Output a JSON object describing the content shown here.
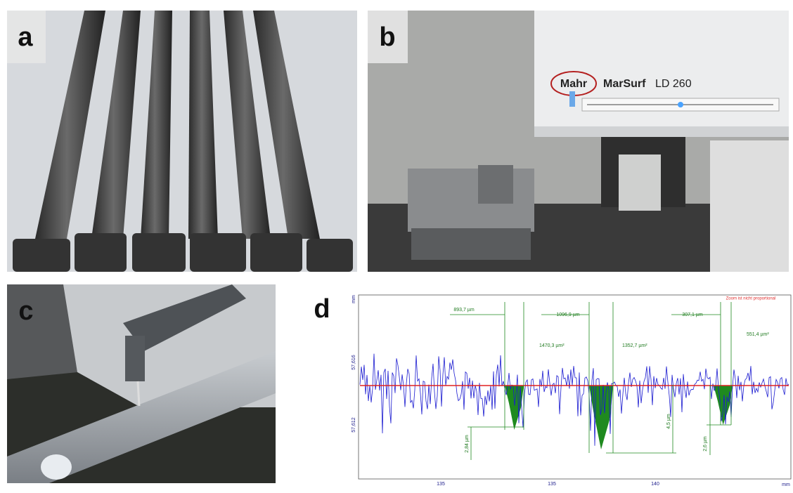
{
  "panels": {
    "a": {
      "label": "a"
    },
    "b": {
      "label": "b",
      "brand": "Mahr",
      "product": "MarSurf",
      "model": "LD 260"
    },
    "c": {
      "label": "c"
    },
    "d": {
      "label": "d",
      "note": "Zoom ist nicht proportional",
      "lengths": [
        "893,7 µm",
        "1096,9 µm",
        "307,1 µm"
      ],
      "areas": [
        "1470,3 µm²",
        "1352,7 µm²",
        "551,4 µm²"
      ],
      "depths": [
        "2,84 µm",
        "4,5 µm",
        "2,6 µm"
      ],
      "y_unit": "mm",
      "y_labels": [
        "57,616",
        "57,612"
      ],
      "x_labels": [
        "135",
        "135",
        "140"
      ],
      "x_unit": "mm"
    }
  }
}
